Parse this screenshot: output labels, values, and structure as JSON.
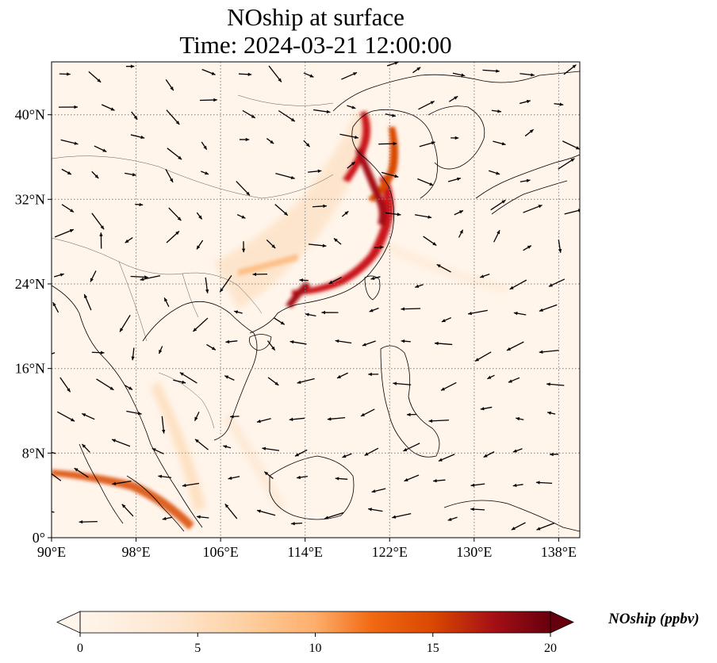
{
  "title": {
    "line1": "NOship at surface",
    "line2": "Time: 2024-03-21 12:00:00"
  },
  "map": {
    "lon_range": [
      90,
      140
    ],
    "lat_range": [
      0,
      45
    ],
    "gridline_style": "dotted grey",
    "lon_ticks": [
      {
        "value": 90,
        "label": "90°E"
      },
      {
        "value": 98,
        "label": "98°E"
      },
      {
        "value": 106,
        "label": "106°E"
      },
      {
        "value": 114,
        "label": "114°E"
      },
      {
        "value": 122,
        "label": "122°E"
      },
      {
        "value": 130,
        "label": "130°E"
      },
      {
        "value": 138,
        "label": "138°E"
      }
    ],
    "lat_ticks": [
      {
        "value": 0,
        "label": "0°"
      },
      {
        "value": 8,
        "label": "8°N"
      },
      {
        "value": 16,
        "label": "16°N"
      },
      {
        "value": 24,
        "label": "24°N"
      },
      {
        "value": 32,
        "label": "32°N"
      },
      {
        "value": 40,
        "label": "40°N"
      }
    ],
    "field_colors": [
      "#fff5eb",
      "#fdd0a2",
      "#fd8d3c",
      "#d94801",
      "#a50f15",
      "#67000d"
    ]
  },
  "colorbar": {
    "label": "NOship (ppbv)",
    "min": 0,
    "max": 20,
    "extend": "both",
    "ticks": [
      {
        "value": 0,
        "label": "0"
      },
      {
        "value": 5,
        "label": "5"
      },
      {
        "value": 10,
        "label": "10"
      },
      {
        "value": 15,
        "label": "15"
      },
      {
        "value": 20,
        "label": "20"
      }
    ]
  }
}
